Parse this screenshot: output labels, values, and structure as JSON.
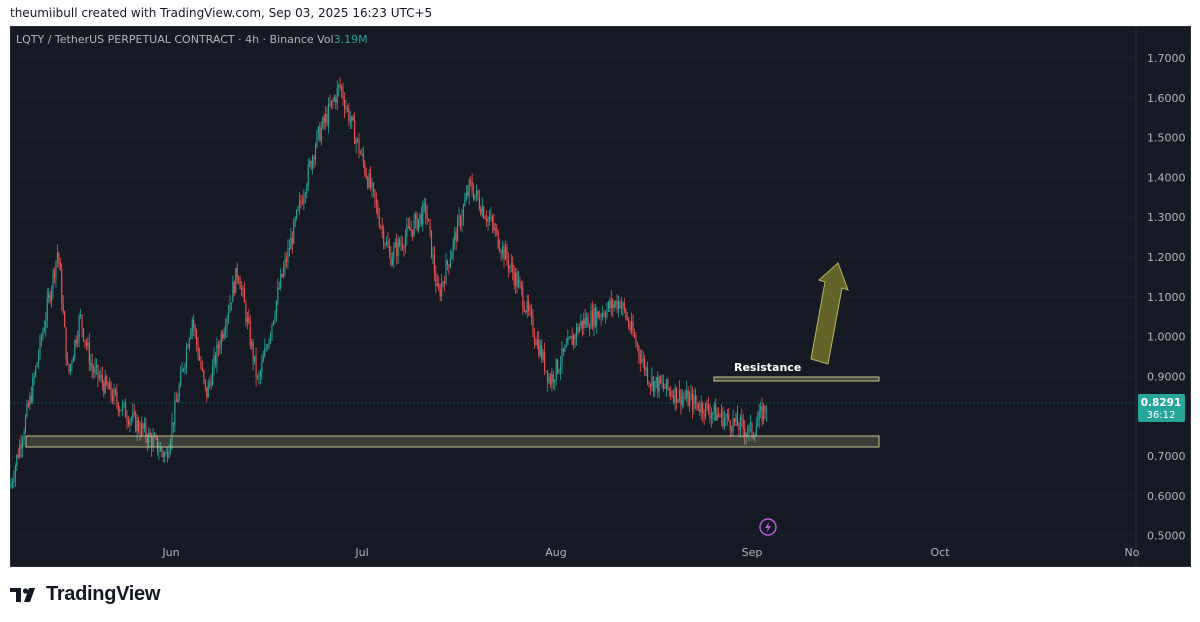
{
  "header": {
    "attribution": "theumiibull created with TradingView.com, Sep 03, 2025 16:23 UTC+5"
  },
  "legend": {
    "symbol": "LQTY / TetherUS PERPETUAL CONTRACT · 4h · Binance",
    "vol_label": "Vol",
    "vol_value": "3.19M"
  },
  "annotations": {
    "resistance_label": "Resistance"
  },
  "price_tag": {
    "price": "0.8291",
    "countdown": "36:12"
  },
  "brand": {
    "name": "TradingView"
  },
  "colors": {
    "background": "#161a25",
    "up": "#26a69a",
    "down": "#ef5350",
    "zone": "#c7c48a",
    "arrow": "#8a8a3a"
  },
  "chart_data": {
    "type": "candlestick",
    "title": "LQTY / TetherUS PERPETUAL CONTRACT",
    "timeframe": "4h",
    "exchange": "Binance",
    "x_tick_labels": [
      "Jun",
      "Jul",
      "Aug",
      "Sep",
      "Oct",
      "No"
    ],
    "y_tick_labels": [
      "1.7000",
      "1.6000",
      "1.5000",
      "1.4000",
      "1.3000",
      "1.2000",
      "1.1000",
      "1.0000",
      "0.9000",
      "0.7000",
      "0.6000",
      "0.5000"
    ],
    "ylim": [
      0.47,
      1.78
    ],
    "last_price": 0.8291,
    "support_zone": [
      0.72,
      0.745
    ],
    "resistance_zone": [
      0.885,
      0.895
    ],
    "close_path": [
      [
        "start",
        0.62
      ],
      [
        "early-May",
        0.84
      ],
      [
        "peak1",
        1.22
      ],
      [
        "dip",
        0.9
      ],
      [
        "bounce",
        1.05
      ],
      [
        "mid-May",
        0.92
      ],
      [
        "pre-Jun",
        0.82
      ],
      [
        "Jun-low",
        0.7
      ],
      [
        "Jun",
        0.88
      ],
      [
        "Jun-high",
        1.05
      ],
      [
        "Jun-mid",
        0.85
      ],
      [
        "Jun-late",
        1.17
      ],
      [
        "Jun-dip",
        0.88
      ],
      [
        "Jun-rise",
        1.13
      ],
      [
        "late-Jun",
        1.49
      ],
      [
        "ATH",
        1.63
      ],
      [
        "Jul",
        1.38
      ],
      [
        "Jul-mid",
        1.2
      ],
      [
        "Jul-bounce",
        1.32
      ],
      [
        "Jul-low",
        1.1
      ],
      [
        "Jul-rise",
        1.38
      ],
      [
        "late-Jul",
        1.28
      ],
      [
        "Aug",
        1.12
      ],
      [
        "Aug-mid",
        0.89
      ],
      [
        "Aug-bounce",
        1.03
      ],
      [
        "Aug-late",
        1.09
      ],
      [
        "Aug-end",
        0.89
      ],
      [
        "Sep",
        0.76
      ],
      [
        "last",
        0.8291
      ]
    ]
  }
}
